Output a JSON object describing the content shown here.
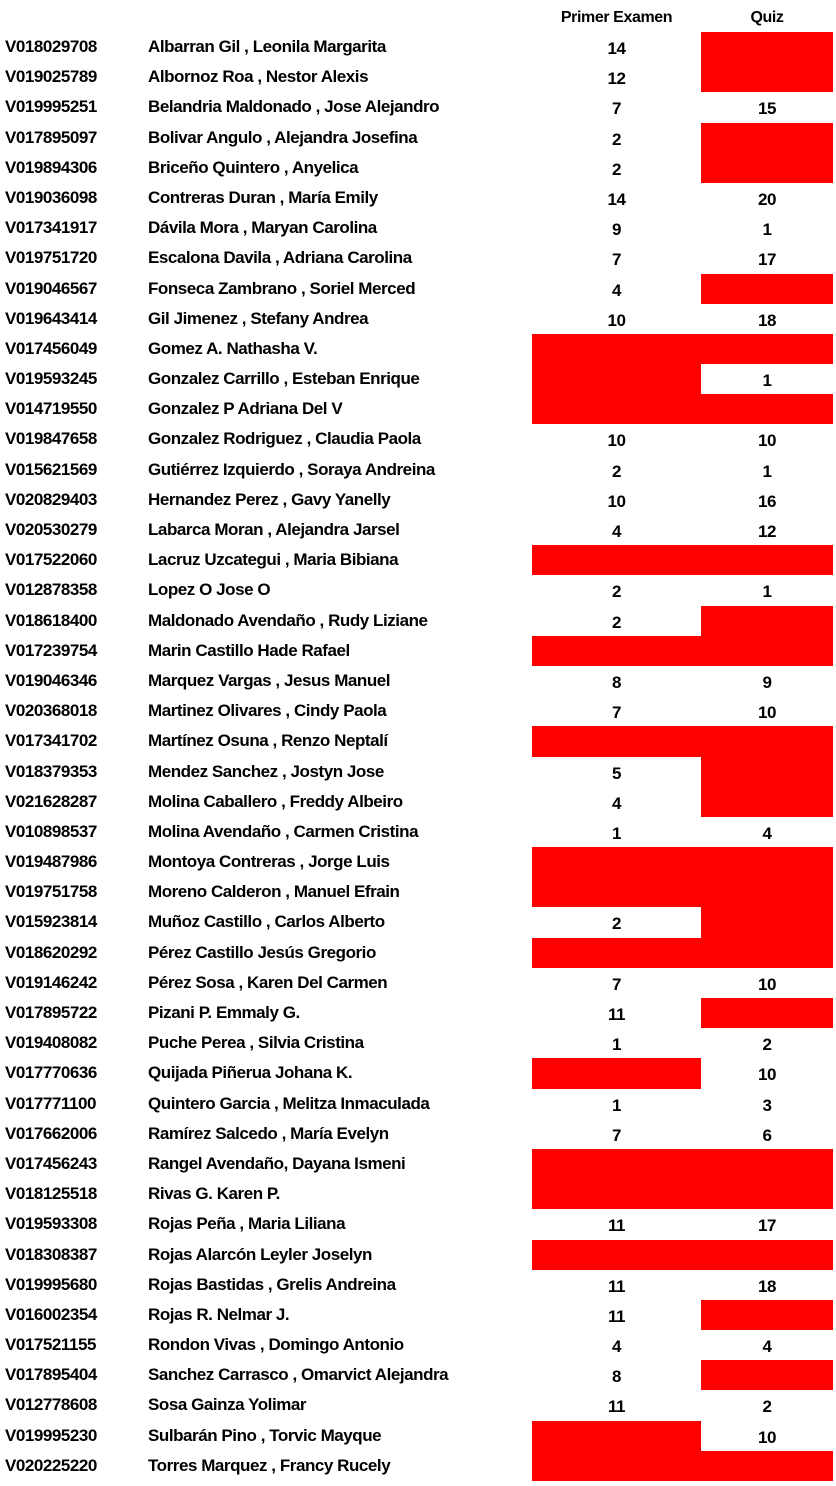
{
  "headers": {
    "exam": "Primer Examen",
    "quiz": "Quiz"
  },
  "colors": {
    "missing": "#ff0000"
  },
  "rows": [
    {
      "id": "V018029708",
      "name": "Albarran Gil , Leonila Margarita",
      "exam": "14",
      "quiz": null
    },
    {
      "id": "V019025789",
      "name": "Albornoz Roa , Nestor Alexis",
      "exam": "12",
      "quiz": null
    },
    {
      "id": "V019995251",
      "name": "Belandria Maldonado , Jose Alejandro",
      "exam": "7",
      "quiz": "15"
    },
    {
      "id": "V017895097",
      "name": "Bolivar Angulo , Alejandra Josefina",
      "exam": "2",
      "quiz": null
    },
    {
      "id": "V019894306",
      "name": "Briceño Quintero , Anyelica",
      "exam": "2",
      "quiz": null
    },
    {
      "id": "V019036098",
      "name": "Contreras Duran , María Emily",
      "exam": "14",
      "quiz": "20"
    },
    {
      "id": "V017341917",
      "name": "Dávila Mora , Maryan Carolina",
      "exam": "9",
      "quiz": "1"
    },
    {
      "id": "V019751720",
      "name": "Escalona Davila , Adriana Carolina",
      "exam": "7",
      "quiz": "17"
    },
    {
      "id": "V019046567",
      "name": "Fonseca Zambrano , Soriel Merced",
      "exam": "4",
      "quiz": null
    },
    {
      "id": "V019643414",
      "name": "Gil Jimenez , Stefany Andrea",
      "exam": "10",
      "quiz": "18"
    },
    {
      "id": "V017456049",
      "name": "Gomez A. Nathasha V.",
      "exam": null,
      "quiz": null
    },
    {
      "id": "V019593245",
      "name": "Gonzalez Carrillo , Esteban Enrique",
      "exam": null,
      "quiz": "1"
    },
    {
      "id": "V014719550",
      "name": "Gonzalez P Adriana Del V",
      "exam": null,
      "quiz": null
    },
    {
      "id": "V019847658",
      "name": "Gonzalez Rodriguez , Claudia Paola",
      "exam": "10",
      "quiz": "10"
    },
    {
      "id": "V015621569",
      "name": "Gutiérrez Izquierdo , Soraya Andreina",
      "exam": "2",
      "quiz": "1"
    },
    {
      "id": "V020829403",
      "name": "Hernandez Perez , Gavy Yanelly",
      "exam": "10",
      "quiz": "16"
    },
    {
      "id": "V020530279",
      "name": "Labarca Moran , Alejandra Jarsel",
      "exam": "4",
      "quiz": "12"
    },
    {
      "id": "V017522060",
      "name": "Lacruz Uzcategui , Maria Bibiana",
      "exam": null,
      "quiz": null
    },
    {
      "id": "V012878358",
      "name": "Lopez O Jose O",
      "exam": "2",
      "quiz": "1"
    },
    {
      "id": "V018618400",
      "name": "Maldonado Avendaño , Rudy Liziane",
      "exam": "2",
      "quiz": null
    },
    {
      "id": "V017239754",
      "name": "Marin Castillo Hade Rafael",
      "exam": null,
      "quiz": null
    },
    {
      "id": "V019046346",
      "name": "Marquez Vargas , Jesus Manuel",
      "exam": "8",
      "quiz": "9"
    },
    {
      "id": "V020368018",
      "name": "Martinez Olivares , Cindy Paola",
      "exam": "7",
      "quiz": "10"
    },
    {
      "id": "V017341702",
      "name": "Martínez Osuna , Renzo Neptalí",
      "exam": null,
      "quiz": null
    },
    {
      "id": "V018379353",
      "name": "Mendez Sanchez , Jostyn Jose",
      "exam": "5",
      "quiz": null
    },
    {
      "id": "V021628287",
      "name": "Molina Caballero , Freddy Albeiro",
      "exam": "4",
      "quiz": null
    },
    {
      "id": "V010898537",
      "name": "Molina Avendaño , Carmen Cristina",
      "exam": "1",
      "quiz": "4"
    },
    {
      "id": "V019487986",
      "name": "Montoya Contreras , Jorge Luis",
      "exam": null,
      "quiz": null
    },
    {
      "id": "V019751758",
      "name": "Moreno Calderon , Manuel Efrain",
      "exam": null,
      "quiz": null
    },
    {
      "id": "V015923814",
      "name": "Muñoz Castillo , Carlos Alberto",
      "exam": "2",
      "quiz": null
    },
    {
      "id": "V018620292",
      "name": "Pérez Castillo Jesús Gregorio",
      "exam": null,
      "quiz": null
    },
    {
      "id": "V019146242",
      "name": "Pérez Sosa , Karen Del Carmen",
      "exam": "7",
      "quiz": "10"
    },
    {
      "id": "V017895722",
      "name": "Pizani P. Emmaly G.",
      "exam": "11",
      "quiz": null
    },
    {
      "id": "V019408082",
      "name": "Puche Perea , Silvia Cristina",
      "exam": "1",
      "quiz": "2"
    },
    {
      "id": "V017770636",
      "name": "Quijada Piñerua Johana K.",
      "exam": null,
      "quiz": "10"
    },
    {
      "id": "V017771100",
      "name": "Quintero Garcia , Melitza Inmaculada",
      "exam": "1",
      "quiz": "3"
    },
    {
      "id": "V017662006",
      "name": "Ramírez Salcedo , María Evelyn",
      "exam": "7",
      "quiz": "6"
    },
    {
      "id": "V017456243",
      "name": "Rangel Avendaño, Dayana Ismeni",
      "exam": null,
      "quiz": null
    },
    {
      "id": "V018125518",
      "name": "Rivas G. Karen P.",
      "exam": null,
      "quiz": null
    },
    {
      "id": "V019593308",
      "name": "Rojas Peña , Maria Liliana",
      "exam": "11",
      "quiz": "17"
    },
    {
      "id": "V018308387",
      "name": "Rojas Alarcón Leyler Joselyn",
      "exam": null,
      "quiz": null
    },
    {
      "id": "V019995680",
      "name": "Rojas Bastidas , Grelis Andreina",
      "exam": "11",
      "quiz": "18"
    },
    {
      "id": "V016002354",
      "name": "Rojas R. Nelmar J.",
      "exam": "11",
      "quiz": null
    },
    {
      "id": "V017521155",
      "name": "Rondon Vivas , Domingo Antonio",
      "exam": "4",
      "quiz": "4"
    },
    {
      "id": "V017895404",
      "name": "Sanchez Carrasco , Omarvict Alejandra",
      "exam": "8",
      "quiz": null
    },
    {
      "id": "V012778608",
      "name": "Sosa Gainza Yolimar",
      "exam": "11",
      "quiz": "2"
    },
    {
      "id": "V019995230",
      "name": "Sulbarán Pino , Torvic Mayque",
      "exam": null,
      "quiz": "10"
    },
    {
      "id": "V020225220",
      "name": "Torres Marquez , Francy Rucely",
      "exam": null,
      "quiz": null
    }
  ]
}
